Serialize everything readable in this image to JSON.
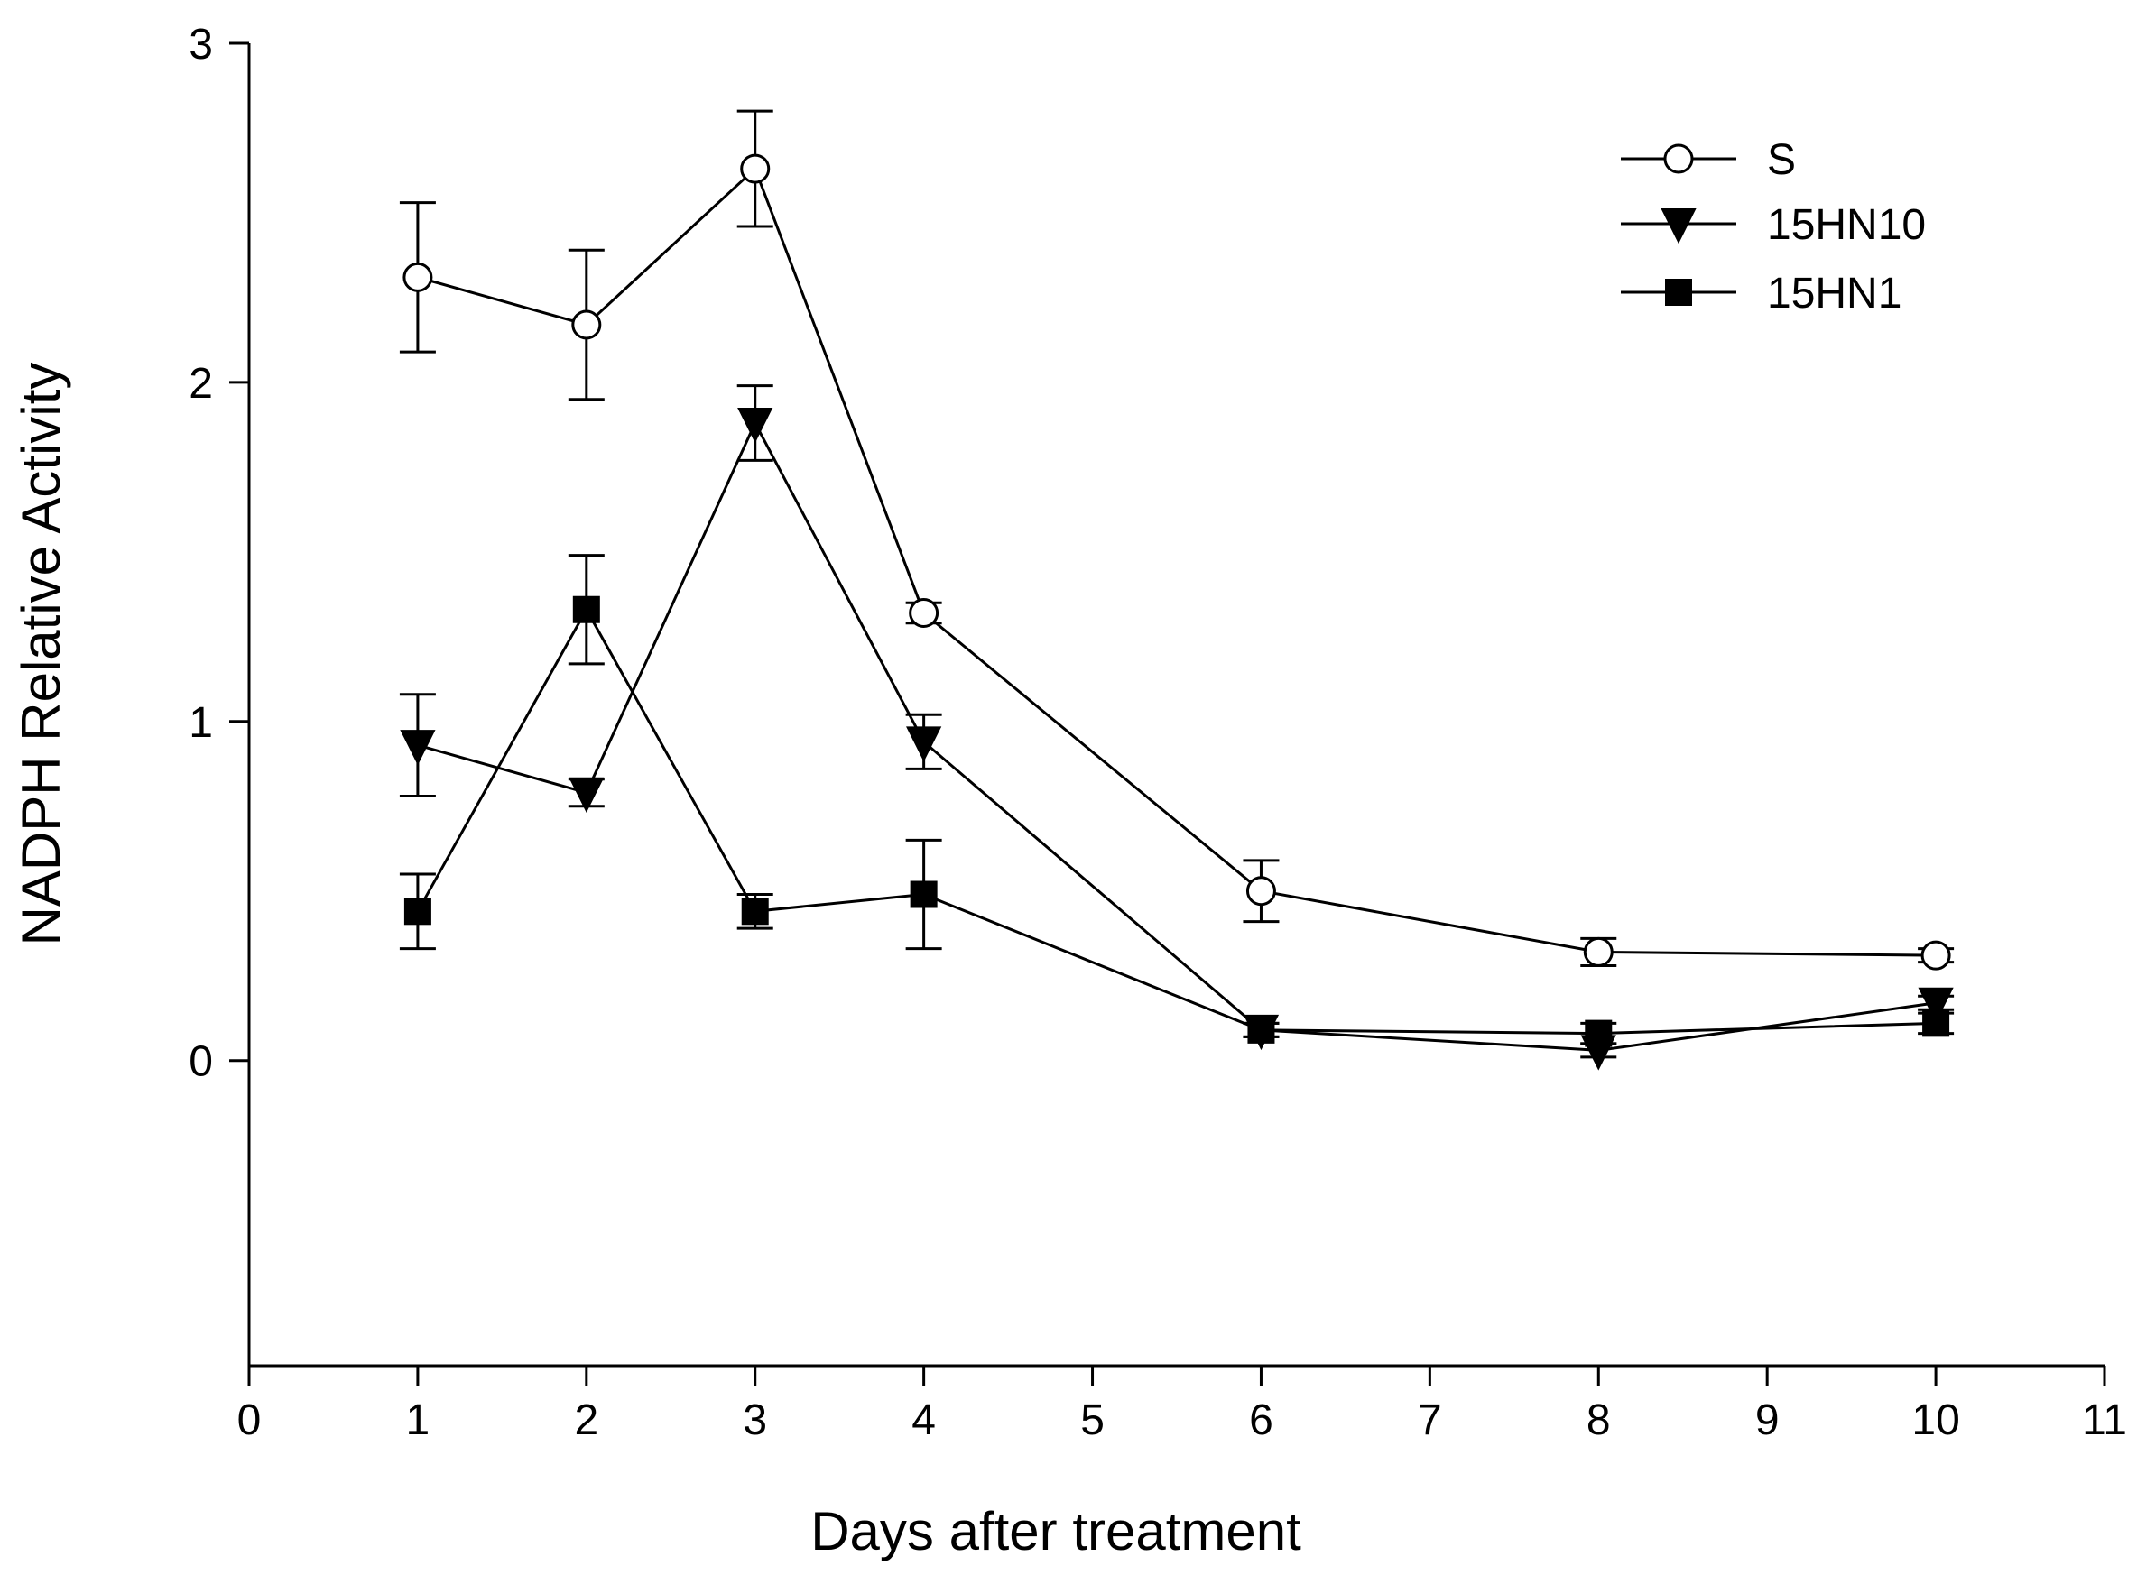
{
  "chart_data": {
    "type": "line",
    "xlabel": "Days after treatment",
    "ylabel": "NADPH Relative Activity",
    "xlim": [
      0,
      11
    ],
    "ylim": [
      -0.9,
      3
    ],
    "xticks": [
      0,
      1,
      2,
      3,
      4,
      5,
      6,
      7,
      8,
      9,
      10,
      11
    ],
    "yticks": [
      0,
      1,
      2,
      3
    ],
    "grid": false,
    "legend_position": "top-right",
    "series": [
      {
        "name": "S",
        "marker": "open-circle",
        "x": [
          1,
          2,
          3,
          4,
          6,
          8,
          10
        ],
        "values": [
          2.31,
          2.17,
          2.63,
          1.32,
          0.5,
          0.32,
          0.31
        ],
        "errors": [
          0.22,
          0.22,
          0.17,
          0.03,
          0.09,
          0.04,
          0.02
        ]
      },
      {
        "name": "15HN10",
        "marker": "filled-down-triangle",
        "x": [
          1,
          2,
          3,
          4,
          6,
          8,
          10
        ],
        "values": [
          0.93,
          0.79,
          1.88,
          0.94,
          0.09,
          0.03,
          0.17
        ],
        "errors": [
          0.15,
          0.04,
          0.11,
          0.08,
          0.02,
          0.02,
          0.02
        ]
      },
      {
        "name": "15HN1",
        "marker": "filled-square",
        "x": [
          1,
          2,
          3,
          4,
          6,
          8,
          10
        ],
        "values": [
          0.44,
          1.33,
          0.44,
          0.49,
          0.09,
          0.08,
          0.11
        ],
        "errors": [
          0.11,
          0.16,
          0.05,
          0.16,
          0.02,
          0.03,
          0.03
        ]
      }
    ]
  }
}
